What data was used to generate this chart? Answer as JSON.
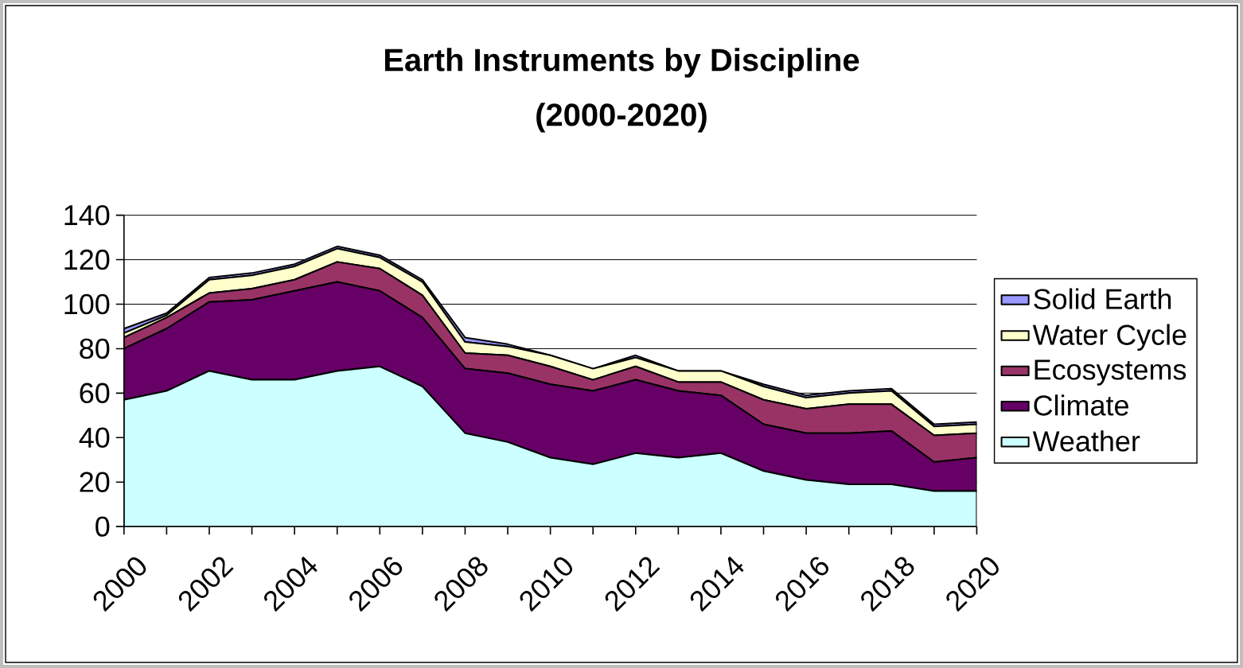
{
  "chart_data": {
    "type": "area",
    "title": "Earth Instruments by Discipline",
    "subtitle": "(2000-2020)",
    "categories": [
      "2000",
      null,
      "2002",
      null,
      "2004",
      null,
      "2006",
      null,
      "2008",
      null,
      "2010",
      null,
      "2012",
      null,
      "2014",
      null,
      "2016",
      null,
      "2018",
      null,
      "2020"
    ],
    "stacked": true,
    "ylim": [
      0,
      140
    ],
    "yticks": [
      0,
      20,
      40,
      60,
      80,
      100,
      120,
      140
    ],
    "grid": "y",
    "legend": "right",
    "series": [
      {
        "name": "Weather",
        "color": "#ccffff",
        "values": [
          57,
          61,
          70,
          66,
          66,
          70,
          72,
          63,
          42,
          38,
          31,
          28,
          33,
          31,
          33,
          25,
          21,
          19,
          19,
          16,
          16
        ]
      },
      {
        "name": "Climate",
        "color": "#660066",
        "values": [
          23,
          28,
          31,
          36,
          40,
          40,
          34,
          31,
          29,
          31,
          33,
          33,
          33,
          30,
          26,
          21,
          21,
          23,
          24,
          13,
          15
        ]
      },
      {
        "name": "Ecosystems",
        "color": "#993366",
        "values": [
          5,
          5,
          4,
          5,
          5,
          9,
          10,
          10,
          7,
          8,
          8,
          5,
          6,
          4,
          6,
          11,
          11,
          13,
          12,
          12,
          11
        ]
      },
      {
        "name": "Water Cycle",
        "color": "#ffffcc",
        "values": [
          2,
          1,
          6,
          6,
          6,
          6,
          5,
          6,
          5,
          4,
          5,
          5,
          4,
          5,
          5,
          6,
          5,
          5,
          6,
          4,
          4
        ]
      },
      {
        "name": "Solid Earth",
        "color": "#9999ff",
        "values": [
          2,
          1,
          1,
          1,
          1,
          1,
          1,
          1,
          2,
          1,
          0,
          0,
          1,
          0,
          0,
          1,
          1,
          1,
          1,
          1,
          1
        ]
      }
    ]
  }
}
